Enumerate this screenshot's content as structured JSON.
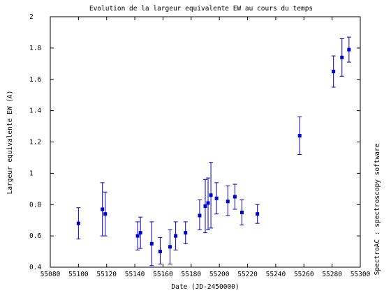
{
  "chart_data": {
    "type": "scatter",
    "title": "Evolution de la largeur equivalente EW au cours du temps",
    "xlabel": "Date (JD-2450000)",
    "ylabel": "Largeur equivalente EW (A)",
    "side_label": "SpectroAC : spectroscopy software",
    "xlim": [
      55080,
      55300
    ],
    "ylim": [
      0.4,
      2.0
    ],
    "x_ticks": [
      55080,
      55100,
      55120,
      55140,
      55160,
      55180,
      55200,
      55220,
      55240,
      55260,
      55280,
      55300
    ],
    "x_tick_labels": [
      "55080",
      "55100",
      "55120",
      "55140",
      "55160",
      "55180",
      "55200",
      "55220",
      "55240",
      "55260",
      "55280",
      "55300"
    ],
    "y_ticks": [
      0.4,
      0.6,
      0.8,
      1.0,
      1.2,
      1.4,
      1.6,
      1.8,
      2.0
    ],
    "y_tick_labels": [
      "0.4",
      "0.6",
      "0.8",
      "1",
      "1.2",
      "1.4",
      "1.6",
      "1.8",
      "2"
    ],
    "grid": false,
    "marker_color": "#0000cc",
    "series": [
      {
        "points": [
          {
            "x": 55100,
            "y": 0.68,
            "lo": 0.58,
            "hi": 0.78
          },
          {
            "x": 55117,
            "y": 0.77,
            "lo": 0.6,
            "hi": 0.94
          },
          {
            "x": 55119,
            "y": 0.74,
            "lo": 0.6,
            "hi": 0.88
          },
          {
            "x": 55142,
            "y": 0.6,
            "lo": 0.51,
            "hi": 0.69
          },
          {
            "x": 55144,
            "y": 0.62,
            "lo": 0.52,
            "hi": 0.72
          },
          {
            "x": 55152,
            "y": 0.55,
            "lo": 0.41,
            "hi": 0.69
          },
          {
            "x": 55158,
            "y": 0.5,
            "lo": 0.42,
            "hi": 0.59
          },
          {
            "x": 55165,
            "y": 0.53,
            "lo": 0.42,
            "hi": 0.64
          },
          {
            "x": 55169,
            "y": 0.6,
            "lo": 0.51,
            "hi": 0.69
          },
          {
            "x": 55176,
            "y": 0.62,
            "lo": 0.55,
            "hi": 0.69
          },
          {
            "x": 55186,
            "y": 0.73,
            "lo": 0.64,
            "hi": 0.83
          },
          {
            "x": 55190,
            "y": 0.79,
            "lo": 0.62,
            "hi": 0.96
          },
          {
            "x": 55192,
            "y": 0.81,
            "lo": 0.64,
            "hi": 0.97
          },
          {
            "x": 55194,
            "y": 0.86,
            "lo": 0.65,
            "hi": 1.07
          },
          {
            "x": 55198,
            "y": 0.84,
            "lo": 0.74,
            "hi": 0.94
          },
          {
            "x": 55206,
            "y": 0.82,
            "lo": 0.73,
            "hi": 0.92
          },
          {
            "x": 55211,
            "y": 0.85,
            "lo": 0.77,
            "hi": 0.93
          },
          {
            "x": 55216,
            "y": 0.75,
            "lo": 0.67,
            "hi": 0.83
          },
          {
            "x": 55227,
            "y": 0.74,
            "lo": 0.68,
            "hi": 0.8
          },
          {
            "x": 55257,
            "y": 1.24,
            "lo": 1.12,
            "hi": 1.36
          },
          {
            "x": 55281,
            "y": 1.65,
            "lo": 1.55,
            "hi": 1.75
          },
          {
            "x": 55287,
            "y": 1.74,
            "lo": 1.62,
            "hi": 1.86
          },
          {
            "x": 55292,
            "y": 1.79,
            "lo": 1.71,
            "hi": 1.87
          }
        ]
      }
    ]
  }
}
